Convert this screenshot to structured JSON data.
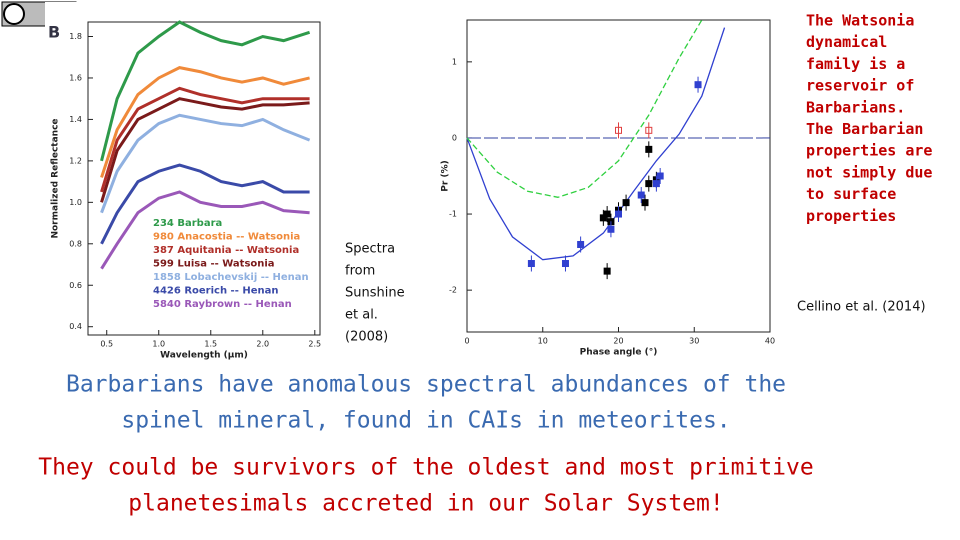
{
  "slide": {
    "note_lines": [
      "The Watsonia",
      "dynamical",
      "family is a",
      "reservoir of",
      "Barbarians.",
      "The Barbarian",
      "properties are",
      "not simply due",
      "to surface",
      "properties"
    ],
    "left_credit_lines": [
      "Spectra",
      "from",
      "Sunshine",
      "et al.",
      "(2008)"
    ],
    "right_credit": "Cellino et al. (2014)",
    "blue_lines": [
      "Barbarians have anomalous spectral abundances of the",
      "spinel mineral, found in CAIs in meteorites."
    ],
    "red_lines": [
      "They could be survivors of the oldest and most primitive",
      "planetesimals accreted in our Solar System!"
    ]
  },
  "chart_data": [
    {
      "type": "line",
      "panel_label": "B",
      "xlabel": "Wavelength (μm)",
      "ylabel": "Normalized Reflectance",
      "x": [
        0.45,
        0.6,
        0.8,
        1.0,
        1.2,
        1.4,
        1.6,
        1.8,
        2.0,
        2.2,
        2.45
      ],
      "xlim": [
        0.32,
        2.55
      ],
      "xticks": [
        0.5,
        {
          "value": 1,
          "label": "1.0"
        },
        1.5,
        {
          "value": 2,
          "label": "2.0"
        },
        2.5
      ],
      "ylim": [
        0.36,
        1.87
      ],
      "yticks": [
        0.4,
        0.6,
        0.8,
        {
          "value": 1,
          "label": "1.0"
        },
        1.2,
        1.4,
        1.6,
        1.8
      ],
      "series": [
        {
          "name": "234 Barbara",
          "color": "#2e9a4a",
          "values": [
            1.2,
            1.5,
            1.72,
            1.8,
            1.87,
            1.82,
            1.78,
            1.76,
            1.8,
            1.78,
            1.82
          ]
        },
        {
          "name": "980 Anacostia -- Watsonia",
          "color": "#f08a3a",
          "values": [
            1.12,
            1.35,
            1.52,
            1.6,
            1.65,
            1.63,
            1.6,
            1.58,
            1.6,
            1.57,
            1.6
          ]
        },
        {
          "name": "387 Aquitania -- Watsonia",
          "color": "#b0302a",
          "values": [
            1.05,
            1.3,
            1.45,
            1.5,
            1.55,
            1.52,
            1.5,
            1.48,
            1.5,
            1.5,
            1.5
          ]
        },
        {
          "name": "599 Luisa  -- Watsonia",
          "color": "#7a1a1a",
          "values": [
            1.0,
            1.25,
            1.4,
            1.45,
            1.5,
            1.48,
            1.46,
            1.45,
            1.47,
            1.47,
            1.48
          ]
        },
        {
          "name": "1858 Lobachevskij -- Henan",
          "color": "#8fb0e0",
          "values": [
            0.95,
            1.15,
            1.3,
            1.38,
            1.42,
            1.4,
            1.38,
            1.37,
            1.4,
            1.35,
            1.3
          ]
        },
        {
          "name": "4426 Roerich -- Henan",
          "color": "#3a4aa8",
          "values": [
            0.8,
            0.95,
            1.1,
            1.15,
            1.18,
            1.15,
            1.1,
            1.08,
            1.1,
            1.05,
            1.05
          ]
        },
        {
          "name": "5840 Raybrown -- Henan",
          "color": "#9a58b8",
          "values": [
            0.68,
            0.8,
            0.95,
            1.02,
            1.05,
            1.0,
            0.98,
            0.98,
            1.0,
            0.96,
            0.95
          ]
        }
      ]
    },
    {
      "type": "scatter",
      "xlabel": "Phase angle (°)",
      "ylabel": "Pr (%)",
      "xlim": [
        0,
        40
      ],
      "xticks": [
        0,
        10,
        20,
        30,
        40
      ],
      "ylim": [
        -2.55,
        1.55
      ],
      "yticks": [
        -2,
        -1,
        0,
        1
      ],
      "series": [
        {
          "style": "line",
          "color": "#3040d0",
          "x": [
            0,
            3,
            6,
            10,
            14,
            18,
            22,
            25,
            28,
            31,
            34
          ],
          "values": [
            0,
            -0.8,
            -1.3,
            -1.6,
            -1.55,
            -1.25,
            -0.7,
            -0.3,
            0.05,
            0.55,
            1.45
          ]
        },
        {
          "style": "dashed",
          "color": "#30d040",
          "x": [
            0,
            4,
            8,
            12,
            16,
            20,
            24,
            28,
            31
          ],
          "values": [
            0,
            -0.45,
            -0.7,
            -0.78,
            -0.65,
            -0.3,
            0.3,
            1.05,
            1.55
          ]
        },
        {
          "style": "points",
          "color": "#000000",
          "x": [
            18.5,
            18,
            18.5,
            19,
            20,
            21,
            23.5,
            24,
            24,
            25
          ],
          "values": [
            -1.75,
            -1.05,
            -1.0,
            -1.1,
            -0.95,
            -0.85,
            -0.85,
            -0.6,
            -0.15,
            -0.55
          ]
        },
        {
          "style": "points",
          "color": "#3040d0",
          "x": [
            8.5,
            13,
            15,
            19,
            20,
            23,
            25,
            25.5,
            30.5
          ],
          "values": [
            -1.65,
            -1.65,
            -1.4,
            -1.2,
            -1.0,
            -0.75,
            -0.6,
            -0.5,
            0.7
          ]
        },
        {
          "style": "open",
          "color": "#e04040",
          "x": [
            20,
            24
          ],
          "values": [
            0.1,
            0.1
          ]
        }
      ]
    }
  ]
}
